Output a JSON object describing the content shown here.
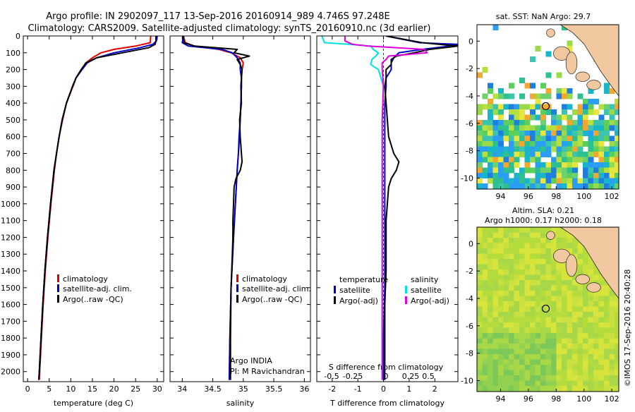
{
  "header": {
    "line1": "Argo profile: IN 2902097_117 13-Sep-2016 20160914_989 4.746S 97.248E",
    "line2": "Climatology: CARS2009. Satellite-adjusted climatology: synTS_20160910.nc (3d earlier)"
  },
  "right_texts": {
    "sst_title": "sat. SST: NaN Argo: 29.7",
    "sla_title1": "Altim. SLA: 0.21",
    "sla_title2": "Argo h1000: 0.17 h2000: 0.18",
    "credit": "©IMOS 17-Sep-2016 20:40:28"
  },
  "colors": {
    "climatology": "#e00000",
    "satellite": "#0000cc",
    "argo": "#000000",
    "satellite_salinity": "#00e0e0",
    "argo_salinity": "#e000e0"
  },
  "chart_data": [
    {
      "type": "line",
      "panel": "temperature",
      "xlabel": "temperature (deg C)",
      "ylabel": "",
      "xlim": [
        -1,
        31.5
      ],
      "ylim": [
        2060,
        0
      ],
      "xticks": [
        0,
        5,
        10,
        15,
        20,
        25,
        30
      ],
      "xtick_labels": [
        "0",
        "5",
        "10",
        "15",
        "20",
        "25",
        "30"
      ],
      "yticks": [
        0,
        100,
        200,
        300,
        400,
        500,
        600,
        700,
        800,
        900,
        1000,
        1100,
        1200,
        1300,
        1400,
        1500,
        1600,
        1700,
        1800,
        1900,
        2000
      ],
      "ytick_labels": [
        "0",
        "100",
        "200",
        "300",
        "400",
        "500",
        "600",
        "700",
        "800",
        "900",
        "1000",
        "1100",
        "1200",
        "1300",
        "1400",
        "1500",
        "1600",
        "1700",
        "1800",
        "1900",
        "2000"
      ],
      "legend": [
        "climatology",
        "satellite-adj. clim.",
        "Argo(..raw -QC)"
      ],
      "legend_position": "lower-middle",
      "series": [
        {
          "name": "climatology",
          "color": "#e00000",
          "depth": [
            0,
            40,
            60,
            80,
            100,
            130,
            160,
            200,
            250,
            300,
            400,
            500,
            600,
            700,
            800,
            1000,
            1200,
            1400,
            1600,
            1800,
            2000,
            2050
          ],
          "values": [
            28.5,
            28.4,
            25,
            20,
            17,
            15,
            13.5,
            12.5,
            11.2,
            10.5,
            9,
            8.1,
            7.3,
            6.7,
            6.2,
            5.4,
            4.7,
            4.1,
            3.6,
            3.2,
            2.8,
            2.7
          ]
        },
        {
          "name": "satellite-adj. clim.",
          "color": "#0000cc",
          "depth": [
            0,
            30,
            50,
            70,
            100,
            130,
            160,
            200,
            250,
            300,
            400,
            500,
            600,
            700,
            800,
            1000,
            1200,
            1400,
            1600,
            1800,
            2000,
            2050
          ],
          "values": [
            30,
            29.8,
            29,
            26,
            20,
            16,
            13.8,
            12.6,
            11.2,
            10.4,
            9,
            8,
            7.3,
            6.7,
            6.1,
            5.3,
            4.6,
            4,
            3.5,
            3.1,
            2.7,
            2.6
          ]
        },
        {
          "name": "Argo(..raw -QC)",
          "color": "#000000",
          "depth": [
            0,
            30,
            50,
            70,
            100,
            130,
            160,
            200,
            250,
            300,
            400,
            500,
            600,
            700,
            800,
            1000,
            1200,
            1400,
            1600,
            1800,
            2000,
            2050
          ],
          "values": [
            29.7,
            29.7,
            29.5,
            28,
            22,
            16,
            13.5,
            12.4,
            11.2,
            10.4,
            9,
            8,
            7.3,
            6.7,
            6.1,
            5.3,
            4.6,
            4,
            3.5,
            3.1,
            2.7,
            2.6
          ]
        }
      ]
    },
    {
      "type": "line",
      "panel": "salinity",
      "xlabel": "salinity",
      "ylabel": "",
      "xlim": [
        33.8,
        36.1
      ],
      "ylim": [
        2060,
        0
      ],
      "xticks": [
        34,
        34.5,
        35,
        35.5,
        36
      ],
      "xtick_labels": [
        "34",
        "34.5",
        "35",
        "35.5",
        "36"
      ],
      "legend": [
        "climatology",
        "satellite-adj. clim.",
        "Argo(..raw -QC)"
      ],
      "legend_position": "lower-right",
      "annotations": [
        "Argo INDIA",
        "PI: M Ravichandran"
      ],
      "series": [
        {
          "name": "climatology",
          "color": "#e00000",
          "depth": [
            0,
            40,
            60,
            80,
            100,
            130,
            160,
            200,
            250,
            300,
            400,
            500,
            600,
            700,
            800,
            1000,
            1200,
            1500,
            1800,
            2050
          ],
          "values": [
            34.02,
            34.05,
            34.2,
            34.6,
            34.8,
            34.95,
            35.0,
            34.98,
            34.97,
            34.97,
            34.96,
            34.95,
            34.94,
            34.92,
            34.9,
            34.87,
            34.84,
            34.8,
            34.78,
            34.77
          ]
        },
        {
          "name": "satellite-adj. clim.",
          "color": "#0000cc",
          "depth": [
            0,
            40,
            60,
            80,
            100,
            130,
            160,
            200,
            250,
            300,
            400,
            500,
            600,
            700,
            800,
            1000,
            1200,
            1500,
            1800,
            2050
          ],
          "values": [
            34.02,
            34.0,
            34.1,
            34.65,
            34.82,
            34.9,
            34.95,
            34.95,
            34.97,
            34.97,
            34.96,
            34.95,
            34.93,
            34.92,
            34.9,
            34.87,
            34.84,
            34.8,
            34.78,
            34.77
          ]
        },
        {
          "name": "Argo(..raw -QC)",
          "color": "#000000",
          "depth": [
            0,
            40,
            60,
            80,
            100,
            120,
            140,
            170,
            200,
            250,
            300,
            400,
            500,
            600,
            700,
            750,
            800,
            850,
            900,
            1000,
            1100,
            1200,
            1300,
            1500,
            1800,
            2050
          ],
          "values": [
            34.01,
            34.03,
            34.2,
            34.9,
            34.85,
            35.1,
            34.9,
            34.95,
            34.98,
            34.97,
            34.96,
            34.97,
            34.94,
            34.95,
            34.97,
            34.98,
            34.95,
            34.88,
            34.85,
            34.84,
            34.83,
            34.83,
            34.82,
            34.8,
            34.79,
            34.79
          ]
        }
      ]
    },
    {
      "type": "line",
      "panel": "differences",
      "xlabel": "T difference from climatology",
      "xlabel_top": "S difference from climatology",
      "xlim": [
        -2.6,
        2.9
      ],
      "ylim": [
        2060,
        0
      ],
      "xticks": [
        -2,
        -1,
        0,
        1,
        2
      ],
      "xtick_labels": [
        "-2",
        "-1",
        "0",
        "1",
        "2"
      ],
      "s_ticks": [
        -0.5,
        -0.25,
        0,
        0.25,
        0.5
      ],
      "s_tick_labels": [
        "-0.5",
        "-0.25",
        "0",
        "0.25",
        "0.5"
      ],
      "legend_titles": [
        "temperature",
        "salinity"
      ],
      "legend": [
        "satellite",
        "Argo(-adj)",
        "satellite",
        "Argo(-adj)"
      ],
      "legend_position": "lower-middle",
      "series": [
        {
          "name": "satellite",
          "color": "#0000cc",
          "depth": [
            0,
            40,
            50,
            60,
            80,
            100,
            130,
            160,
            200,
            250,
            300,
            400,
            500,
            600,
            800,
            1000,
            1200,
            1500,
            1800,
            2050
          ],
          "values": [
            0.1,
            1.4,
            2.9,
            2.6,
            1.5,
            0.6,
            0.4,
            0.3,
            0.3,
            0.1,
            0.1,
            0.05,
            0.05,
            0.05,
            0.05,
            0.05,
            0.05,
            0.05,
            0.0,
            0.0
          ]
        },
        {
          "name": "Argo(-adj)",
          "color": "#000000",
          "depth": [
            0,
            40,
            60,
            80,
            100,
            120,
            140,
            170,
            200,
            250,
            300,
            400,
            500,
            600,
            700,
            750,
            800,
            850,
            900,
            1000,
            1100,
            1200,
            1400,
            1600,
            1800,
            2050
          ],
          "values": [
            0.1,
            1.5,
            2.9,
            1.8,
            1.2,
            0.5,
            0.3,
            0.3,
            0.1,
            0.1,
            0.05,
            0.1,
            0.15,
            0.2,
            0.4,
            0.6,
            0.5,
            0.3,
            0.2,
            0.15,
            0.1,
            0.1,
            0.1,
            0.05,
            0.05,
            0.05
          ]
        },
        {
          "name": "satellite",
          "color": "#00e0e0",
          "depth": [
            0,
            40,
            50,
            60,
            80,
            100,
            120,
            140,
            170,
            200,
            300,
            500,
            800,
            1200,
            1600,
            2050
          ],
          "values": [
            -2.4,
            -2.3,
            -1.3,
            -0.5,
            -0.4,
            -0.2,
            -0.3,
            -0.45,
            -0.5,
            -0.2,
            0,
            -0.05,
            -0.05,
            -0.05,
            -0.05,
            -0.05
          ]
        },
        {
          "name": "Argo(-adj)",
          "color": "#e000e0",
          "depth": [
            0,
            30,
            50,
            60,
            80,
            100,
            120,
            140,
            160,
            200,
            300,
            500,
            800,
            1200,
            1600,
            2050
          ],
          "values": [
            -1.5,
            -1.5,
            -1.2,
            -0.6,
            1.6,
            1.7,
            0.2,
            0.1,
            -0.05,
            -0.05,
            0,
            -0.05,
            -0.05,
            -0.05,
            -0.05,
            -0.05
          ]
        }
      ]
    },
    {
      "type": "heatmap",
      "panel": "sst-map",
      "title": "sat. SST: NaN Argo: 29.7",
      "xlim": [
        92.3,
        102.5
      ],
      "ylim": [
        -10.8,
        1.2
      ],
      "xticks": [
        94,
        96,
        98,
        100,
        102
      ],
      "xtick_labels": [
        "94",
        "96",
        "98",
        "100",
        "102"
      ],
      "yticks": [
        0,
        -2,
        -4,
        -6,
        -8,
        -10
      ],
      "ytick_labels": [
        "0",
        "-2",
        "-4",
        "-6",
        "-8",
        "-10"
      ],
      "argo_position": [
        97.248,
        -4.746
      ]
    },
    {
      "type": "heatmap",
      "panel": "sla-map",
      "title": "Altim. SLA: 0.21",
      "xlim": [
        92.3,
        102.5
      ],
      "ylim": [
        -10.8,
        1.2
      ],
      "xticks": [
        94,
        96,
        98,
        100,
        102
      ],
      "xtick_labels": [
        "94",
        "96",
        "98",
        "100",
        "102"
      ],
      "yticks": [
        0,
        -2,
        -4,
        -6,
        -8,
        -10
      ],
      "ytick_labels": [
        "0",
        "-2",
        "-4",
        "-6",
        "-8",
        "-10"
      ],
      "argo_position": [
        97.248,
        -4.746
      ]
    }
  ]
}
